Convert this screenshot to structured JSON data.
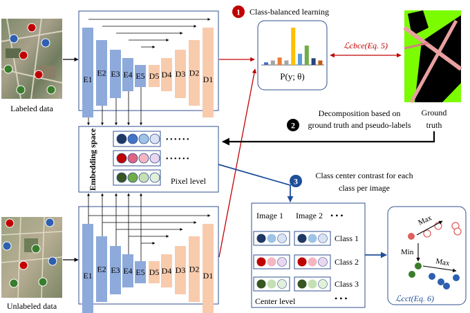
{
  "labels": {
    "labeled": "Labeled data",
    "unlabeled": "Unlabeled data",
    "embedding_space": "Embedding space",
    "pixel_level": "Pixel level",
    "prob": "P(y; θ)",
    "loss_cbce": "ℒcbce(Eq. 5)",
    "ground_truth_line1": "Ground",
    "ground_truth_line2": "truth",
    "center_level": "Center level",
    "loss_cct": "ℒcct(Eq. 6)",
    "min": "Min",
    "max": "Max",
    "image1": "Image 1",
    "image2": "Image 2",
    "dots": "• • •",
    "dots_row": "• • • • • •",
    "class1": "Class 1",
    "class2": "Class 2",
    "class3": "Class 3"
  },
  "steps": [
    {
      "num": "1",
      "text": "Class-balanced learning",
      "color": "#c00000"
    },
    {
      "num": "2",
      "text_line1": "Decomposition based on",
      "text_line2": "ground truth and pseudo-labels",
      "color": "#000000"
    },
    {
      "num": "3",
      "text_line1": "Class center contrast for each",
      "text_line2": "class per image",
      "color": "#1f4e9a"
    }
  ],
  "network": {
    "encoder": [
      "E1",
      "E2",
      "E3",
      "E4",
      "E5"
    ],
    "decoder": [
      "D5",
      "D4",
      "D3",
      "D2",
      "D1"
    ],
    "encoder_color": "#8eaadb",
    "decoder_color": "#f8cbad"
  },
  "histogram": {
    "values": [
      0.07,
      0.12,
      0.2,
      0.12,
      1.0,
      0.3,
      0.52,
      0.18,
      0.12
    ],
    "colors": [
      "#4472c4",
      "#a5a5a5",
      "#ed7d31",
      "#a5a5a5",
      "#ffc000",
      "#5b9bd5",
      "#70ad47",
      "#264478",
      "#c55a11"
    ]
  },
  "colors": {
    "blue_dark": "#1f3864",
    "red": "#c00000",
    "green": "#375623",
    "step_red": "#c00000",
    "step_blue": "#1f4e9a"
  }
}
